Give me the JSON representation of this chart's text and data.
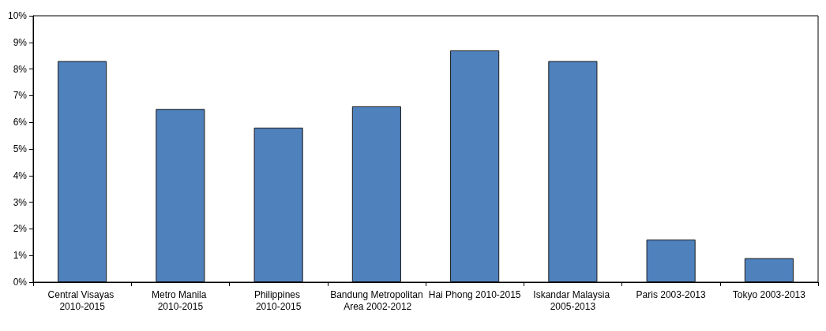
{
  "chart_data": {
    "type": "bar",
    "categories": [
      "Central Visayas 2010-2015",
      "Metro Manila 2010-2015",
      "Philippines 2010-2015",
      "Bandung Metropolitan Area 2002-2012",
      "Hai Phong 2010-2015",
      "Iskandar Malaysia 2005-2013",
      "Paris 2003-2013",
      "Tokyo 2003-2013"
    ],
    "values": [
      8.3,
      6.5,
      5.8,
      6.6,
      8.7,
      8.3,
      1.6,
      0.9
    ],
    "color": "#4f81bd",
    "ylim": [
      0,
      10
    ],
    "yticks": [
      {
        "value": 0,
        "label": "0%"
      },
      {
        "value": 1,
        "label": "1%"
      },
      {
        "value": 2,
        "label": "2%"
      },
      {
        "value": 3,
        "label": "3%"
      },
      {
        "value": 4,
        "label": "4%"
      },
      {
        "value": 5,
        "label": "5%"
      },
      {
        "value": 6,
        "label": "6%"
      },
      {
        "value": 7,
        "label": "7%"
      },
      {
        "value": 8,
        "label": "8%"
      },
      {
        "value": 9,
        "label": "9%"
      },
      {
        "value": 10,
        "label": "10%"
      }
    ],
    "grid": false
  }
}
